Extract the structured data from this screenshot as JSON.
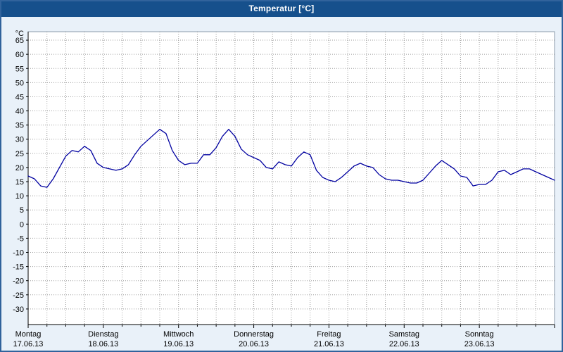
{
  "window": {
    "title": "Temperatur [°C]"
  },
  "chart_data": {
    "type": "line",
    "title": "Temperatur [°C]",
    "ylabel": "°C",
    "xlabel": "",
    "ylim": [
      -30,
      65
    ],
    "y_ticks": [
      65,
      60,
      55,
      50,
      45,
      40,
      35,
      30,
      25,
      20,
      15,
      10,
      5,
      0,
      -5,
      -10,
      -15,
      -20,
      -25,
      -30
    ],
    "grid": "dotted",
    "legend": "none",
    "x_range_hours": 168,
    "vgrid_step_hours": 6,
    "line_color": "#0000a0",
    "days": [
      {
        "name": "Montag",
        "date": "17.06.13"
      },
      {
        "name": "Dienstag",
        "date": "18.06.13"
      },
      {
        "name": "Mittwoch",
        "date": "19.06.13"
      },
      {
        "name": "Donnerstag",
        "date": "20.06.13"
      },
      {
        "name": "Freitag",
        "date": "21.06.13"
      },
      {
        "name": "Samstag",
        "date": "22.06.13"
      },
      {
        "name": "Sonntag",
        "date": "23.06.13"
      }
    ],
    "series": [
      {
        "name": "Temperatur",
        "x_hours": [
          0,
          2,
          4,
          6,
          8,
          10,
          12,
          14,
          16,
          18,
          20,
          22,
          24,
          26,
          28,
          30,
          32,
          34,
          36,
          38,
          40,
          42,
          44,
          46,
          48,
          50,
          52,
          54,
          56,
          58,
          60,
          62,
          64,
          66,
          68,
          70,
          72,
          74,
          76,
          78,
          80,
          82,
          84,
          86,
          88,
          90,
          92,
          94,
          96,
          98,
          100,
          102,
          104,
          106,
          108,
          110,
          112,
          114,
          116,
          118,
          120,
          122,
          124,
          126,
          128,
          130,
          132,
          134,
          136,
          138,
          140,
          142,
          144,
          146,
          148,
          150,
          152,
          154,
          156,
          158,
          160,
          162,
          164,
          166,
          168
        ],
        "values": [
          17,
          16,
          13.5,
          13,
          16,
          20,
          24,
          26,
          25.5,
          27.5,
          26,
          21.5,
          20,
          19.5,
          19,
          19.5,
          21,
          24.5,
          27.5,
          29.5,
          31.5,
          33.5,
          32,
          26,
          22.5,
          21,
          21.5,
          21.5,
          24.5,
          24.5,
          27,
          31,
          33.5,
          31,
          26.5,
          24.5,
          23.5,
          22.5,
          20,
          19.5,
          22,
          21,
          20.5,
          23.5,
          25.5,
          24.5,
          19,
          16.5,
          15.5,
          15,
          16.5,
          18.5,
          20.5,
          21.5,
          20.5,
          20,
          17.5,
          16,
          15.5,
          15.5,
          15,
          14.5,
          14.5,
          15.5,
          18,
          20.5,
          22.5,
          21,
          19.5,
          17,
          16.5,
          13.5,
          14,
          14,
          15.5,
          18.5,
          19,
          17.5,
          18.5,
          19.5,
          19.5,
          18.5,
          17.5,
          16.5,
          15.5
        ]
      }
    ]
  }
}
